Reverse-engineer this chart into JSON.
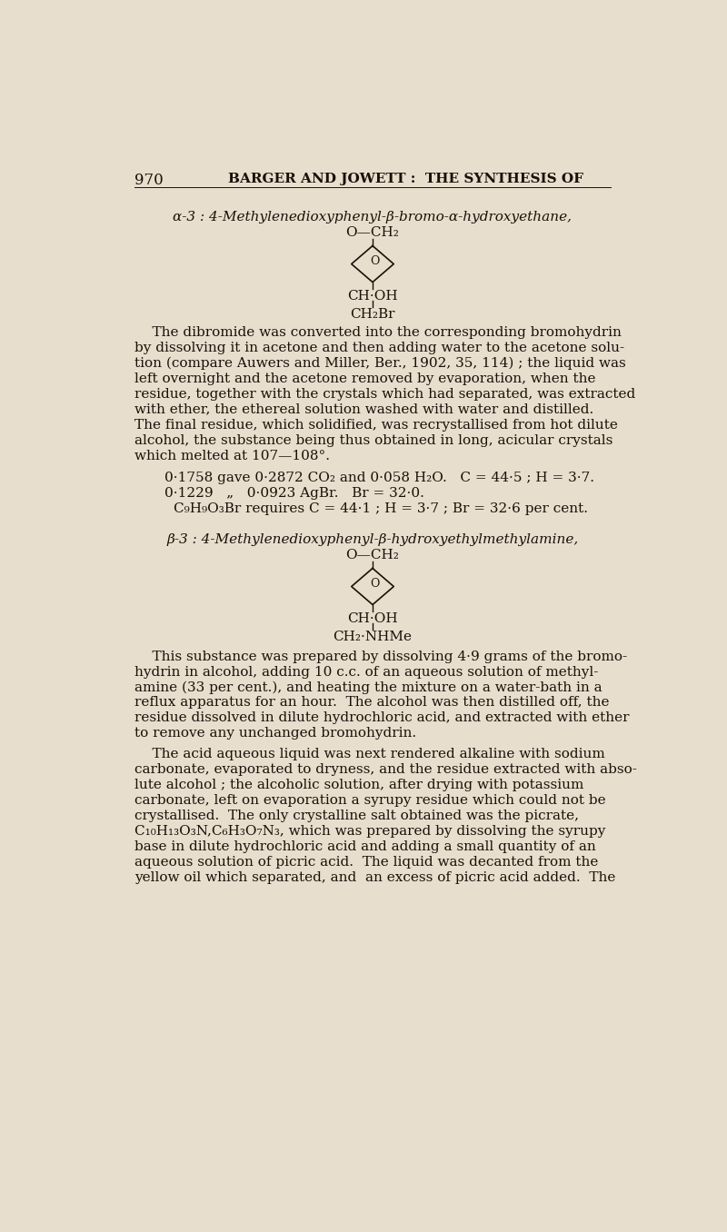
{
  "background_color": "#e8dece",
  "text_color": "#1a1008",
  "header_num": "970",
  "header_title": "BARGER AND JOWETT :  THE SYNTHESIS OF",
  "title1": "α-3 : 4-Methylenedioxyphenyl-β-bromo-α-hydroxyethane,",
  "title2": "β-3 : 4-Methylenedioxyphenyl-β-hydroxyethylmethylamine,",
  "struct1_top": "O—CH₂",
  "struct1_mid": "CH·OH",
  "struct1_bot": "CH₂Br",
  "struct2_top": "O—CH₂",
  "struct2_mid": "CH·OH",
  "struct2_bot": "CH₂·NHMe",
  "data_line1": "0·1758 gave 0·2872 CO₂ and 0·058 H₂O.   C = 44·5 ; H = 3·7.",
  "data_line2": "0·1229   „   0·0923 AgBr.   Br = 32·0.",
  "data_line3": "C₉H₉O₃Br requires C = 44·1 ; H = 3·7 ; Br = 32·6 per cent.",
  "body1_lines": [
    "    The dibromide was converted into the corresponding bromohydrin",
    "by dissolving it in acetone and then adding water to the acetone solu-",
    "tion (compare Auwers and Miller, Ber., 1902, 35, 114) ; the liquid was",
    "left overnight and the acetone removed by evaporation, when the",
    "residue, together with the crystals which had separated, was extracted",
    "with ether, the ethereal solution washed with water and distilled.",
    "The final residue, which solidified, was recrystallised from hot dilute",
    "alcohol, the substance being thus obtained in long, acicular crystals",
    "which melted at 107—108°."
  ],
  "body2_lines": [
    "    This substance was prepared by dissolving 4·9 grams of the bromo-",
    "hydrin in alcohol, adding 10 c.c. of an aqueous solution of methyl-",
    "amine (33 per cent.), and heating the mixture on a water-bath in a",
    "reflux apparatus for an hour.  The alcohol was then distilled off, the",
    "residue dissolved in dilute hydrochloric acid, and extracted with ether",
    "to remove any unchanged bromohydrin."
  ],
  "body3_lines": [
    "    The acid aqueous liquid was next rendered alkaline with sodium",
    "carbonate, evaporated to dryness, and the residue extracted with abso-",
    "lute alcohol ; the alcoholic solution, after drying with potassium",
    "carbonate, left on evaporation a syrupy residue which could not be",
    "crystallised.  The only crystalline salt obtained was the picrate,",
    "C₁₀H₁₃O₃N,C₆H₃O₇N₃, which was prepared by dissolving the syrupy",
    "base in dilute hydrochloric acid and adding a small quantity of an",
    "aqueous solution of picric acid.  The liquid was decanted from the",
    "yellow oil which separated, and  an excess of picric acid added.  The"
  ]
}
